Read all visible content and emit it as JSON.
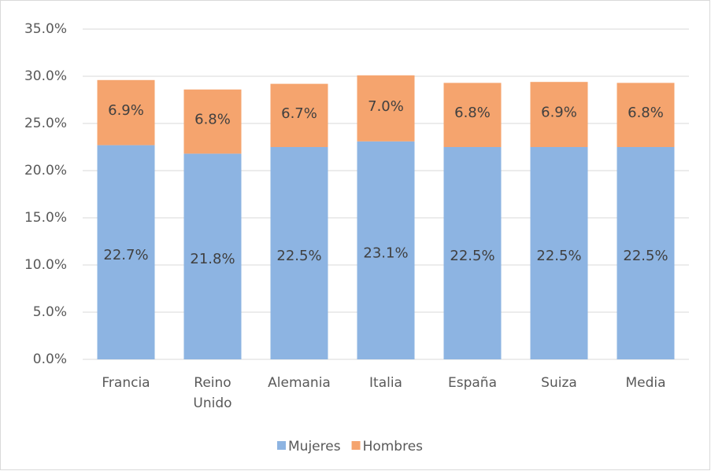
{
  "chart_data": {
    "type": "stacked_bar",
    "categories": [
      "Francia",
      "Reino Unido",
      "Alemania",
      "Italia",
      "España",
      "Suiza",
      "Media"
    ],
    "series": [
      {
        "name": "Mujeres",
        "color": "#8db4e2",
        "values": [
          22.7,
          21.8,
          22.5,
          23.1,
          22.5,
          22.5,
          22.5
        ],
        "value_labels": [
          "22.7%",
          "21.8%",
          "22.5%",
          "23.1%",
          "22.5%",
          "22.5%",
          "22.5%"
        ]
      },
      {
        "name": "Hombres",
        "color": "#f5a46e",
        "values": [
          6.9,
          6.8,
          6.7,
          7.0,
          6.8,
          6.9,
          6.8
        ],
        "value_labels": [
          "6.9%",
          "6.8%",
          "6.7%",
          "7.0%",
          "6.8%",
          "6.9%",
          "6.8%"
        ]
      }
    ],
    "ylim": [
      0,
      35
    ],
    "yticks": [
      {
        "value": 0,
        "label": "0.0%"
      },
      {
        "value": 5,
        "label": "5.0%"
      },
      {
        "value": 10,
        "label": "10.0%"
      },
      {
        "value": 15,
        "label": "15.0%"
      },
      {
        "value": 20,
        "label": "20.0%"
      },
      {
        "value": 25,
        "label": "25.0%"
      },
      {
        "value": 30,
        "label": "30.0%"
      },
      {
        "value": 35,
        "label": "35.0%"
      }
    ],
    "grid": true,
    "legend": "bottom"
  }
}
